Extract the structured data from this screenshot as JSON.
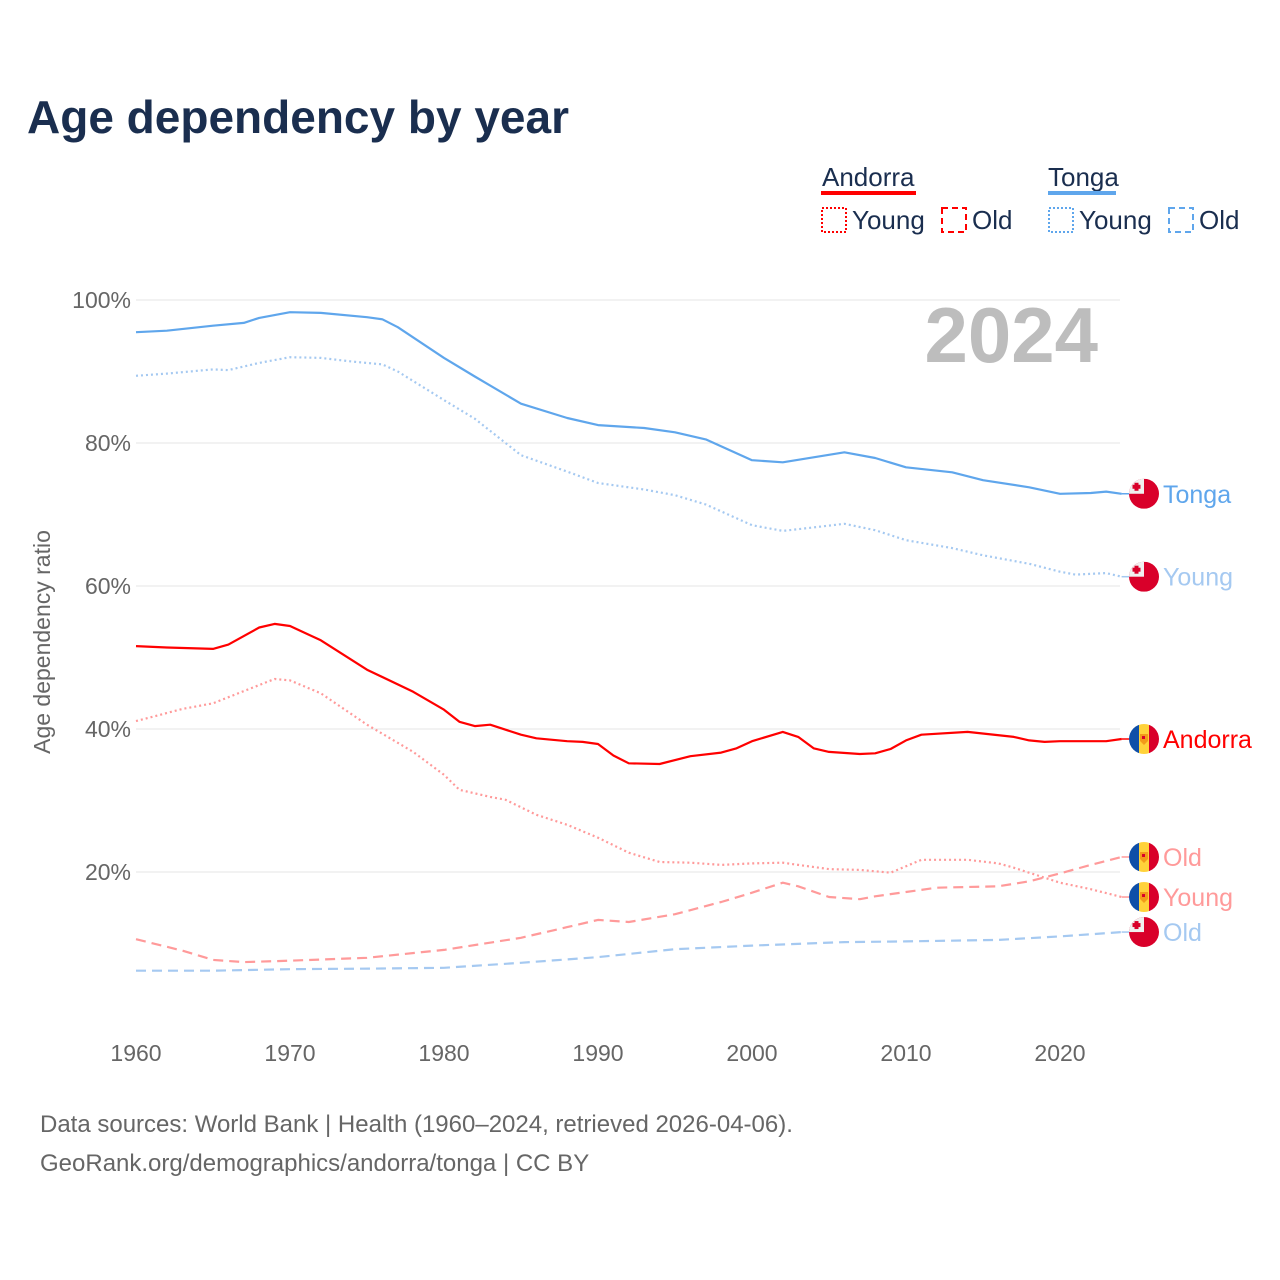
{
  "chart_data": {
    "type": "line",
    "title": "Age dependency by year",
    "ylabel": "Age dependency ratio",
    "xlabel": "",
    "xlim": [
      1960,
      2024
    ],
    "ylim": [
      0,
      100
    ],
    "x_ticks": [
      "1960",
      "1970",
      "1980",
      "1990",
      "2000",
      "2010",
      "2020"
    ],
    "y_ticks": [
      "20%",
      "40%",
      "60%",
      "80%",
      "100%"
    ],
    "grid": true,
    "year_watermark": "2024",
    "legend": {
      "placement": "top-right",
      "groups": [
        {
          "country": "Andorra",
          "items": [
            "Young",
            "Old"
          ]
        },
        {
          "country": "Tonga",
          "items": [
            "Young",
            "Old"
          ]
        }
      ]
    },
    "colors": {
      "andorra": "#ff0000",
      "andorra_light": "#ff9a9a",
      "tonga": "#5fa6ec",
      "tonga_light": "#a5c9f1"
    },
    "series": [
      {
        "name": "Tonga",
        "label": "Tonga",
        "country": "Tonga",
        "style": "solid",
        "color": "#5fa6ec",
        "points": [
          [
            1960,
            95.5
          ],
          [
            1962,
            95.7
          ],
          [
            1965,
            96.4
          ],
          [
            1967,
            96.8
          ],
          [
            1968,
            97.5
          ],
          [
            1970,
            98.3
          ],
          [
            1972,
            98.2
          ],
          [
            1975,
            97.6
          ],
          [
            1976,
            97.3
          ],
          [
            1977,
            96.2
          ],
          [
            1980,
            91.9
          ],
          [
            1982,
            89.3
          ],
          [
            1985,
            85.5
          ],
          [
            1988,
            83.5
          ],
          [
            1990,
            82.5
          ],
          [
            1993,
            82.1
          ],
          [
            1995,
            81.5
          ],
          [
            1997,
            80.5
          ],
          [
            2000,
            77.6
          ],
          [
            2002,
            77.3
          ],
          [
            2004,
            78.0
          ],
          [
            2006,
            78.7
          ],
          [
            2008,
            77.9
          ],
          [
            2010,
            76.6
          ],
          [
            2013,
            75.9
          ],
          [
            2015,
            74.8
          ],
          [
            2018,
            73.8
          ],
          [
            2020,
            72.9
          ],
          [
            2022,
            73.0
          ],
          [
            2023,
            73.2
          ],
          [
            2024,
            72.9
          ]
        ]
      },
      {
        "name": "Tonga Young",
        "label": "Young",
        "country": "Tonga",
        "style": "dotted",
        "color": "#a5c9f1",
        "points": [
          [
            1960,
            89.4
          ],
          [
            1962,
            89.7
          ],
          [
            1965,
            90.3
          ],
          [
            1966,
            90.2
          ],
          [
            1968,
            91.2
          ],
          [
            1970,
            92.0
          ],
          [
            1972,
            91.9
          ],
          [
            1974,
            91.4
          ],
          [
            1976,
            91.0
          ],
          [
            1977,
            90.0
          ],
          [
            1980,
            86.0
          ],
          [
            1982,
            83.4
          ],
          [
            1985,
            78.3
          ],
          [
            1988,
            76.0
          ],
          [
            1990,
            74.4
          ],
          [
            1993,
            73.5
          ],
          [
            1995,
            72.7
          ],
          [
            1997,
            71.4
          ],
          [
            2000,
            68.5
          ],
          [
            2002,
            67.7
          ],
          [
            2004,
            68.2
          ],
          [
            2006,
            68.7
          ],
          [
            2008,
            67.8
          ],
          [
            2010,
            66.4
          ],
          [
            2013,
            65.3
          ],
          [
            2015,
            64.3
          ],
          [
            2018,
            63.1
          ],
          [
            2020,
            62.0
          ],
          [
            2021,
            61.6
          ],
          [
            2023,
            61.8
          ],
          [
            2024,
            61.3
          ]
        ]
      },
      {
        "name": "Tonga Old",
        "label": "Old",
        "country": "Tonga",
        "style": "dashed",
        "color": "#a5c9f1",
        "points": [
          [
            1960,
            6.2
          ],
          [
            1965,
            6.2
          ],
          [
            1970,
            6.4
          ],
          [
            1976,
            6.5
          ],
          [
            1980,
            6.6
          ],
          [
            1985,
            7.3
          ],
          [
            1990,
            8.1
          ],
          [
            1995,
            9.2
          ],
          [
            2000,
            9.7
          ],
          [
            2006,
            10.2
          ],
          [
            2010,
            10.3
          ],
          [
            2016,
            10.5
          ],
          [
            2020,
            11.0
          ],
          [
            2024,
            11.6
          ]
        ]
      },
      {
        "name": "Andorra",
        "label": "Andorra",
        "country": "Andorra",
        "style": "solid",
        "color": "#ff0000",
        "points": [
          [
            1960,
            51.6
          ],
          [
            1962,
            51.4
          ],
          [
            1965,
            51.2
          ],
          [
            1966,
            51.8
          ],
          [
            1968,
            54.2
          ],
          [
            1969,
            54.7
          ],
          [
            1970,
            54.4
          ],
          [
            1972,
            52.4
          ],
          [
            1975,
            48.3
          ],
          [
            1978,
            45.2
          ],
          [
            1980,
            42.7
          ],
          [
            1981,
            41.0
          ],
          [
            1982,
            40.4
          ],
          [
            1983,
            40.6
          ],
          [
            1985,
            39.2
          ],
          [
            1986,
            38.7
          ],
          [
            1988,
            38.3
          ],
          [
            1989,
            38.2
          ],
          [
            1990,
            37.9
          ],
          [
            1991,
            36.3
          ],
          [
            1992,
            35.2
          ],
          [
            1994,
            35.1
          ],
          [
            1996,
            36.2
          ],
          [
            1998,
            36.7
          ],
          [
            1999,
            37.3
          ],
          [
            2000,
            38.3
          ],
          [
            2002,
            39.6
          ],
          [
            2003,
            38.9
          ],
          [
            2004,
            37.3
          ],
          [
            2005,
            36.8
          ],
          [
            2007,
            36.5
          ],
          [
            2008,
            36.6
          ],
          [
            2009,
            37.2
          ],
          [
            2010,
            38.4
          ],
          [
            2011,
            39.2
          ],
          [
            2014,
            39.6
          ],
          [
            2017,
            38.9
          ],
          [
            2018,
            38.4
          ],
          [
            2019,
            38.2
          ],
          [
            2020,
            38.3
          ],
          [
            2023,
            38.3
          ],
          [
            2024,
            38.6
          ]
        ]
      },
      {
        "name": "Andorra Old",
        "label": "Old",
        "country": "Andorra",
        "style": "dashed",
        "color": "#ff9a9a",
        "points": [
          [
            1960,
            10.6
          ],
          [
            1963,
            9.0
          ],
          [
            1965,
            7.7
          ],
          [
            1967,
            7.4
          ],
          [
            1970,
            7.6
          ],
          [
            1975,
            8.0
          ],
          [
            1980,
            9.1
          ],
          [
            1985,
            10.8
          ],
          [
            1988,
            12.3
          ],
          [
            1990,
            13.3
          ],
          [
            1992,
            13.0
          ],
          [
            1995,
            14.1
          ],
          [
            1998,
            15.8
          ],
          [
            2000,
            17.1
          ],
          [
            2002,
            18.5
          ],
          [
            2003,
            18.0
          ],
          [
            2005,
            16.5
          ],
          [
            2007,
            16.2
          ],
          [
            2008,
            16.6
          ],
          [
            2010,
            17.2
          ],
          [
            2012,
            17.8
          ],
          [
            2016,
            18.0
          ],
          [
            2018,
            18.7
          ],
          [
            2020,
            19.8
          ],
          [
            2022,
            21.0
          ],
          [
            2024,
            22.1
          ]
        ]
      },
      {
        "name": "Andorra Young",
        "label": "Young",
        "country": "Andorra",
        "style": "dotted",
        "color": "#ff9a9a",
        "points": [
          [
            1960,
            41.1
          ],
          [
            1963,
            42.8
          ],
          [
            1965,
            43.6
          ],
          [
            1967,
            45.3
          ],
          [
            1969,
            47.0
          ],
          [
            1970,
            46.8
          ],
          [
            1972,
            45.0
          ],
          [
            1975,
            40.6
          ],
          [
            1978,
            36.8
          ],
          [
            1980,
            33.6
          ],
          [
            1981,
            31.5
          ],
          [
            1983,
            30.5
          ],
          [
            1984,
            30.1
          ],
          [
            1986,
            28.0
          ],
          [
            1988,
            26.6
          ],
          [
            1990,
            24.8
          ],
          [
            1992,
            22.7
          ],
          [
            1994,
            21.4
          ],
          [
            1996,
            21.3
          ],
          [
            1998,
            21.0
          ],
          [
            2000,
            21.2
          ],
          [
            2002,
            21.3
          ],
          [
            2003,
            21.0
          ],
          [
            2005,
            20.4
          ],
          [
            2007,
            20.3
          ],
          [
            2009,
            19.9
          ],
          [
            2011,
            21.7
          ],
          [
            2014,
            21.7
          ],
          [
            2016,
            21.2
          ],
          [
            2017,
            20.6
          ],
          [
            2020,
            18.5
          ],
          [
            2022,
            17.6
          ],
          [
            2024,
            16.5
          ]
        ]
      }
    ]
  },
  "footer": {
    "source": "Data sources: World Bank | Health (1960–2024, retrieved 2026-04-06).",
    "link": "GeoRank.org/demographics/andorra/tonga | CC BY"
  }
}
